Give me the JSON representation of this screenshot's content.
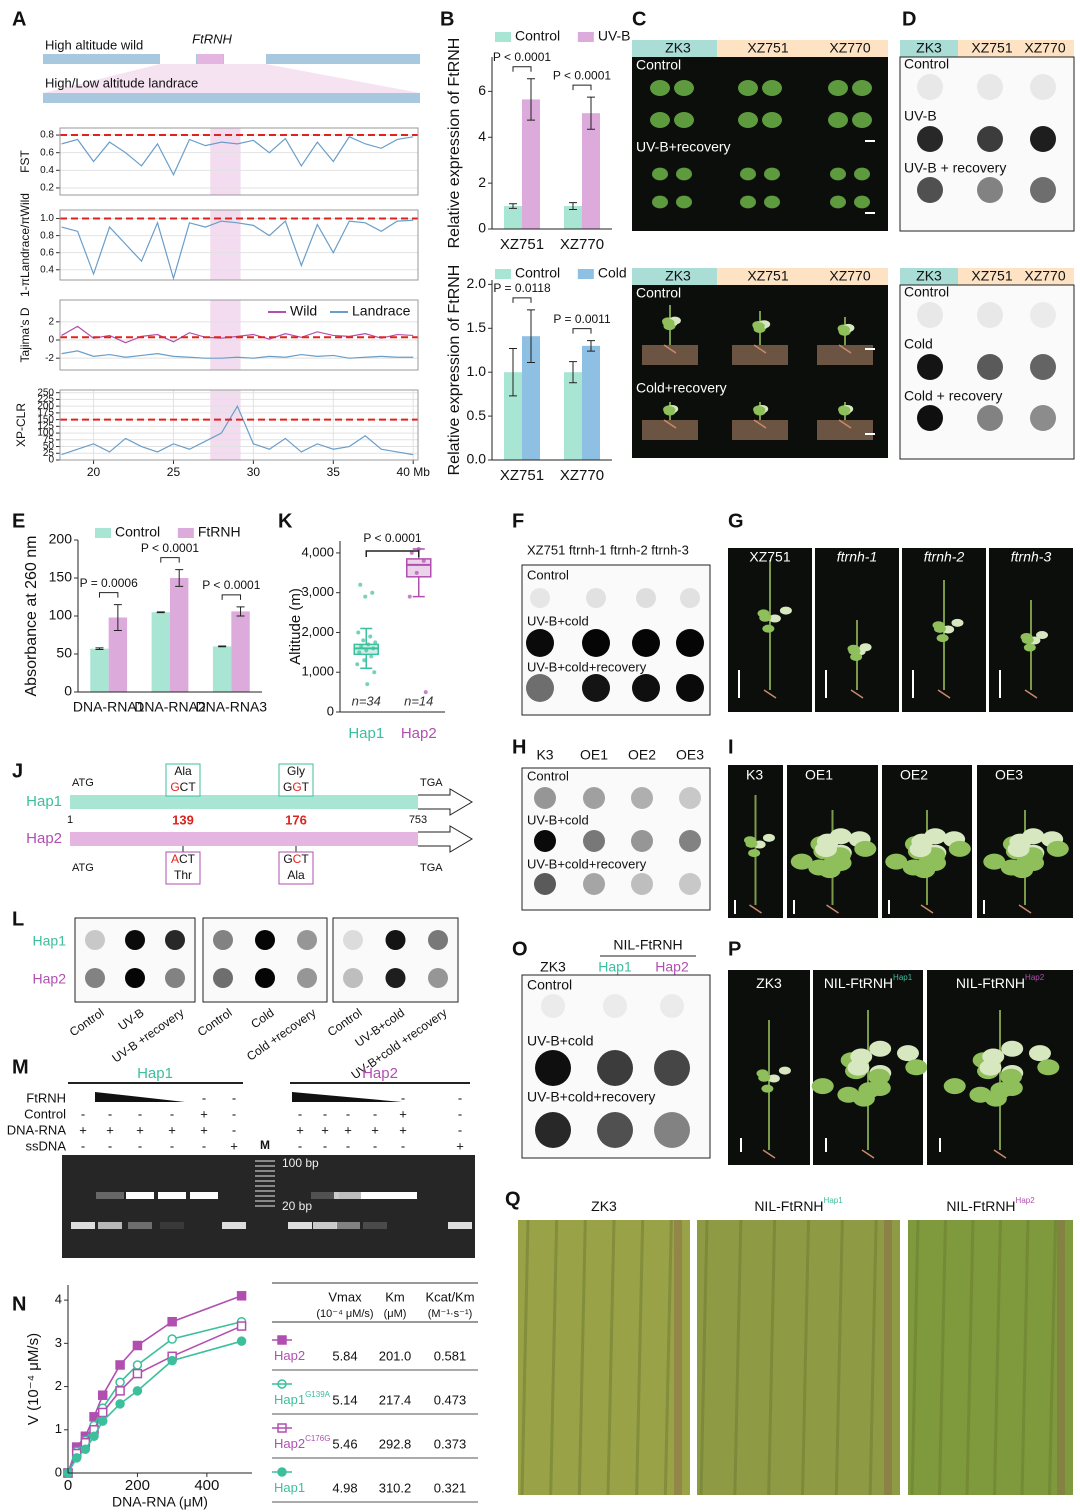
{
  "panel_letters": [
    "A",
    "B",
    "C",
    "D",
    "E",
    "K",
    "F",
    "G",
    "J",
    "H",
    "I",
    "L",
    "O",
    "P",
    "M",
    "N",
    "Q"
  ],
  "panel_a": {
    "wild": "High altitude wild",
    "gene": "FtRNH",
    "landrace": "High/Low altitude landrace"
  },
  "chart_data": [
    {
      "type": "line",
      "ylabel": "FST",
      "x": [
        18,
        19,
        20,
        21,
        22,
        23,
        24,
        25,
        26,
        27,
        28,
        29,
        30,
        31,
        32,
        33,
        34,
        35,
        36,
        37,
        38,
        39,
        40
      ],
      "values": [
        0.7,
        0.75,
        0.5,
        0.72,
        0.6,
        0.45,
        0.7,
        0.35,
        0.75,
        0.68,
        0.72,
        0.7,
        0.74,
        0.6,
        0.76,
        0.45,
        0.72,
        0.5,
        0.78,
        0.7,
        0.65,
        0.75,
        0.78
      ],
      "color": "#6a9ec9",
      "threshold": 0.8,
      "highlight_x": [
        27.3,
        29.2
      ],
      "xlim": [
        17.9,
        40.3
      ],
      "ylim": [
        0.12,
        0.88
      ],
      "yticks": [
        0.2,
        0.4,
        0.6,
        0.8
      ],
      "grid": true
    },
    {
      "type": "line",
      "ylabel": "1-πLandrace/πWild",
      "x": [
        18,
        19,
        20,
        21,
        22,
        23,
        24,
        25,
        26,
        27,
        28,
        29,
        30,
        31,
        32,
        33,
        34,
        35,
        36,
        37,
        38,
        39,
        40
      ],
      "values": [
        0.9,
        0.85,
        0.35,
        0.9,
        0.7,
        0.5,
        0.95,
        0.3,
        0.95,
        0.9,
        0.97,
        0.95,
        0.92,
        0.8,
        0.97,
        0.45,
        0.93,
        0.6,
        0.97,
        0.95,
        0.85,
        0.97,
        0.98
      ],
      "color": "#6a9ec9",
      "threshold": 1,
      "highlight_x": [
        27.3,
        29.2
      ],
      "xlim": [
        17.9,
        40.3
      ],
      "ylim": [
        0.28,
        1.1
      ],
      "yticks": [
        0.4,
        0.6,
        0.8,
        {
          "value": 1,
          "label": "1.0"
        }
      ],
      "grid": true
    },
    {
      "type": "line",
      "ylabel": "Tajima's D",
      "x": [
        18,
        19,
        20,
        21,
        22,
        23,
        24,
        25,
        26,
        27,
        28,
        29,
        30,
        31,
        32,
        33,
        34,
        35,
        36,
        37,
        38,
        39,
        40
      ],
      "series": [
        {
          "name": "Wild",
          "color": "#b14fb0",
          "values": [
            0.5,
            1.5,
            0.2,
            0.5,
            -0.3,
            0.4,
            0.6,
            -0.2,
            0.8,
            0.3,
            0.2,
            0.4,
            0.6,
            0.1,
            0.7,
            0.3,
            0.9,
            0.5,
            0.4,
            0.7,
            0.2,
            0.6,
            0.5
          ]
        },
        {
          "name": "Landrace",
          "color": "#6a9ec9",
          "values": [
            -1.5,
            -1.2,
            -1.8,
            -1.6,
            -1.9,
            -1.7,
            -1.5,
            -1.8,
            -1.9,
            -2,
            -2,
            -1.9,
            -2,
            -1.8,
            -1.9,
            -1.6,
            -1.8,
            -1.7,
            -2,
            -1.9,
            -1.8,
            -1.9,
            -1.9
          ]
        }
      ],
      "legend": "top-right",
      "threshold": 0.3,
      "highlight_x": [
        27.3,
        29.2
      ],
      "xlim": [
        17.9,
        40.3
      ],
      "ylim": [
        -3.3,
        4.4
      ],
      "yticks": [
        -2,
        0,
        2
      ],
      "grid": true
    },
    {
      "type": "line",
      "ylabel": "XP-CLR",
      "x": [
        18,
        19,
        20,
        21,
        22,
        23,
        24,
        25,
        26,
        27,
        28,
        29,
        30,
        31,
        32,
        33,
        34,
        35,
        36,
        37,
        38,
        39,
        40
      ],
      "values": [
        20,
        40,
        60,
        30,
        80,
        50,
        30,
        60,
        40,
        70,
        100,
        200,
        60,
        40,
        80,
        30,
        60,
        40,
        50,
        90,
        40,
        30,
        20
      ],
      "color": "#6a9ec9",
      "threshold": 150,
      "highlight_x": [
        27.3,
        29.2
      ],
      "xlim": [
        17.9,
        40.3
      ],
      "ylim": [
        0,
        260
      ],
      "yticks": [
        0,
        25,
        50,
        75,
        100,
        125,
        150,
        175,
        200,
        225,
        250
      ],
      "xticks": [
        20,
        25,
        30,
        35,
        {
          "value": 40,
          "label": "40 Mb"
        }
      ],
      "grid": true
    },
    {
      "type": "bar",
      "ylabel": "Relative expression of FtRNH",
      "categories": [
        "XZ751",
        "XZ770"
      ],
      "series": [
        {
          "name": "Control",
          "color": "#a8e5d3",
          "values": [
            1.0,
            1.0
          ],
          "errors": [
            0.1,
            0.15
          ]
        },
        {
          "name": "UV-B",
          "color": "#dcaadb",
          "values": [
            5.65,
            5.05
          ],
          "errors": [
            0.9,
            0.7
          ]
        }
      ],
      "annotations": [
        "P < 0.0001",
        "P < 0.0001"
      ],
      "legend": "top",
      "ylim": [
        0,
        7.5
      ],
      "yticks": [
        0,
        2,
        4,
        6
      ]
    },
    {
      "type": "bar",
      "ylabel": "Relative expression of FtRNH",
      "categories": [
        "XZ751",
        "XZ770"
      ],
      "series": [
        {
          "name": "Control",
          "color": "#a8e5d3",
          "values": [
            1.0,
            1.0
          ],
          "errors": [
            0.27,
            0.12
          ]
        },
        {
          "name": "Cold",
          "color": "#8ec0e3",
          "values": [
            1.41,
            1.3
          ],
          "errors": [
            0.3,
            0.06
          ]
        }
      ],
      "annotations": [
        "P = 0.0118",
        "P = 0.0011"
      ],
      "legend": "top",
      "ylim": [
        0,
        2.05
      ],
      "yticks": [
        {
          "value": 0,
          "label": "0.0"
        },
        0.5,
        {
          "value": 1,
          "label": "1.0"
        },
        1.5,
        {
          "value": 2,
          "label": "2.0"
        }
      ]
    },
    {
      "type": "bar",
      "ylabel": "Absorbance at 260 nm",
      "categories": [
        "DNA-RNA1",
        "DNA-RNA2",
        "DNA-RNA3"
      ],
      "series": [
        {
          "name": "Control",
          "color": "#a8e5d3",
          "values": [
            57,
            105,
            60
          ],
          "errors": [
            1,
            0.5,
            0.5
          ]
        },
        {
          "name": "FtRNH",
          "color": "#dcaadb",
          "values": [
            98,
            150,
            106
          ],
          "errors": [
            17,
            11,
            6
          ]
        }
      ],
      "annotations": [
        "P = 0.0006",
        "P < 0.0001",
        "P < 0.0001"
      ],
      "legend": "top",
      "ylim": [
        0,
        200
      ],
      "yticks": [
        0,
        50,
        100,
        150,
        200
      ]
    },
    {
      "type": "box",
      "ylabel": "Altitude (m)",
      "categories": [
        "Hap1",
        "Hap2"
      ],
      "colors": [
        "#3cbf9c",
        "#b14fb0"
      ],
      "whisker_low": [
        1100,
        2900
      ],
      "q1": [
        1450,
        3400
      ],
      "median": [
        1600,
        3700
      ],
      "q3": [
        1700,
        3850
      ],
      "whisker_high": [
        2100,
        4100
      ],
      "points": [
        [
          1200,
          1300,
          1400,
          1500,
          1550,
          1600,
          1650,
          1700,
          1750,
          1800,
          1900,
          2000,
          2900,
          3000,
          3200,
          700,
          1000
        ],
        [
          2900,
          3500,
          3800,
          4000,
          4100,
          500
        ]
      ],
      "n_labels": [
        "n=34",
        "n=14"
      ],
      "annotation": "P < 0.0001",
      "ylim": [
        0,
        4300
      ],
      "yticks": [
        0,
        {
          "value": 1000,
          "label": "1,000"
        },
        {
          "value": 2000,
          "label": "2,000"
        },
        {
          "value": 3000,
          "label": "3,000"
        },
        {
          "value": 4000,
          "label": "4,000"
        }
      ]
    },
    {
      "type": "line",
      "xlabel": "DNA-RNA (μM)",
      "ylabel": "V (10⁻⁴ μM/s)",
      "x": [
        0,
        25,
        50,
        75,
        100,
        150,
        200,
        300,
        500
      ],
      "series": [
        {
          "name": "Hap2",
          "color": "#b14fb0",
          "marker": "square",
          "filled": true,
          "values": [
            0,
            0.6,
            0.85,
            1.3,
            1.8,
            2.5,
            2.95,
            3.5,
            4.1
          ]
        },
        {
          "name": "Hap1",
          "superscript": "G139A",
          "color": "#3cbf9c",
          "marker": "circle",
          "filled": false,
          "values": [
            0,
            0.5,
            0.75,
            1.1,
            1.5,
            2.1,
            2.5,
            3.1,
            3.5
          ]
        },
        {
          "name": "Hap2",
          "superscript": "C176G",
          "color": "#b14fb0",
          "marker": "square",
          "filled": false,
          "values": [
            0,
            0.45,
            0.7,
            1.0,
            1.4,
            1.9,
            2.3,
            2.7,
            3.4
          ]
        },
        {
          "name": "Hap1",
          "color": "#3cbf9c",
          "marker": "circle",
          "filled": true,
          "values": [
            0,
            0.35,
            0.55,
            0.85,
            1.2,
            1.6,
            1.9,
            2.6,
            3.05
          ]
        }
      ],
      "xlim": [
        0,
        530
      ],
      "ylim": [
        0,
        4.35
      ],
      "xticks": [
        0,
        200,
        400
      ],
      "yticks": [
        0,
        1,
        2,
        3,
        4
      ]
    }
  ],
  "kinetics_table": {
    "headers": [
      [
        "Vmax",
        "(10⁻⁴ μM/s)"
      ],
      [
        "Km",
        "(μM)"
      ],
      [
        "Kcat/Km",
        "(M⁻¹·s⁻¹)"
      ]
    ],
    "rows": [
      [
        "5.84",
        "201.0",
        "0.581"
      ],
      [
        "5.14",
        "217.4",
        "0.473"
      ],
      [
        "5.46",
        "292.8",
        "0.373"
      ],
      [
        "4.98",
        "310.2",
        "0.321"
      ]
    ]
  },
  "panel_c": {
    "headers": [
      "ZK3",
      "XZ751",
      "XZ770"
    ],
    "top_rows": [
      "Control",
      "UV-B+recovery"
    ],
    "bottom_rows": [
      "Control",
      "Cold+recovery"
    ]
  },
  "panel_d": {
    "headers": [
      "ZK3",
      "XZ751",
      "XZ770"
    ],
    "top_rows": [
      "Control",
      "UV-B",
      "UV-B + recovery"
    ],
    "bottom_rows": [
      "Control",
      "Cold",
      "Cold + recovery"
    ]
  },
  "panel_f": {
    "header": "XZ751 ftrnh-1 ftrnh-2 ftrnh-3",
    "rows": [
      "Control",
      "UV-B+cold",
      "UV-B+cold+recovery"
    ]
  },
  "panel_g": {
    "labels": [
      "XZ751",
      "ftrnh-1",
      "ftrnh-2",
      "ftrnh-3"
    ]
  },
  "panel_h": {
    "headers": [
      "K3",
      "OE1",
      "OE2",
      "OE3"
    ],
    "rows": [
      "Control",
      "UV-B+cold",
      "UV-B+cold+recovery"
    ]
  },
  "panel_i": {
    "labels": [
      "K3",
      "OE1",
      "OE2",
      "OE3"
    ]
  },
  "panel_j": {
    "hap1": "Hap1",
    "hap2": "Hap2",
    "start": "ATG",
    "stop": "TGA",
    "pos_start": "1",
    "pos_end": "753",
    "sites": [
      "139",
      "176"
    ],
    "hap1_aa": [
      "Ala",
      "Gly"
    ],
    "hap1_codons": [
      "GCT",
      "GGT"
    ],
    "hap2_aa": [
      "Thr",
      "Ala"
    ],
    "hap2_codons": [
      "ACT",
      "GCT"
    ]
  },
  "panel_l": {
    "rows": [
      "Hap1",
      "Hap2"
    ],
    "conditions": [
      "Control",
      "UV-B",
      "UV-B +recovery",
      "Control",
      "Cold",
      "Cold +recovery",
      "Control",
      "UV-B+cold",
      "UV-B+cold +recovery"
    ]
  },
  "panel_m": {
    "hap1": "Hap1",
    "hap2": "Hap2",
    "row_labels": [
      "FtRNH",
      "Control",
      "DNA-RNA",
      "ssDNA"
    ],
    "signs": [
      [
        null,
        null,
        null,
        null,
        "-",
        "-"
      ],
      [
        "-",
        "-",
        "-",
        "-",
        "+",
        "-"
      ],
      [
        "+",
        "+",
        "+",
        "+",
        "+",
        "-"
      ],
      [
        "-",
        "-",
        "-",
        "-",
        "-",
        "+"
      ]
    ],
    "marker": "M",
    "ladder": [
      "100 bp",
      "20 bp"
    ]
  },
  "panel_o": {
    "header": "NIL-FtRNH",
    "columns": [
      "ZK3",
      "Hap1",
      "Hap2"
    ],
    "rows": [
      "Control",
      "UV-B+cold",
      "UV-B+cold+recovery"
    ]
  },
  "panel_p": {
    "labels": [
      "ZK3",
      "NIL-FtRNH",
      "NIL-FtRNH"
    ],
    "superscripts": [
      "Hap1",
      "Hap2"
    ]
  },
  "panel_q": {
    "labels": [
      "ZK3",
      "NIL-FtRNH",
      "NIL-FtRNH"
    ],
    "superscripts": [
      "Hap1",
      "Hap2"
    ]
  }
}
